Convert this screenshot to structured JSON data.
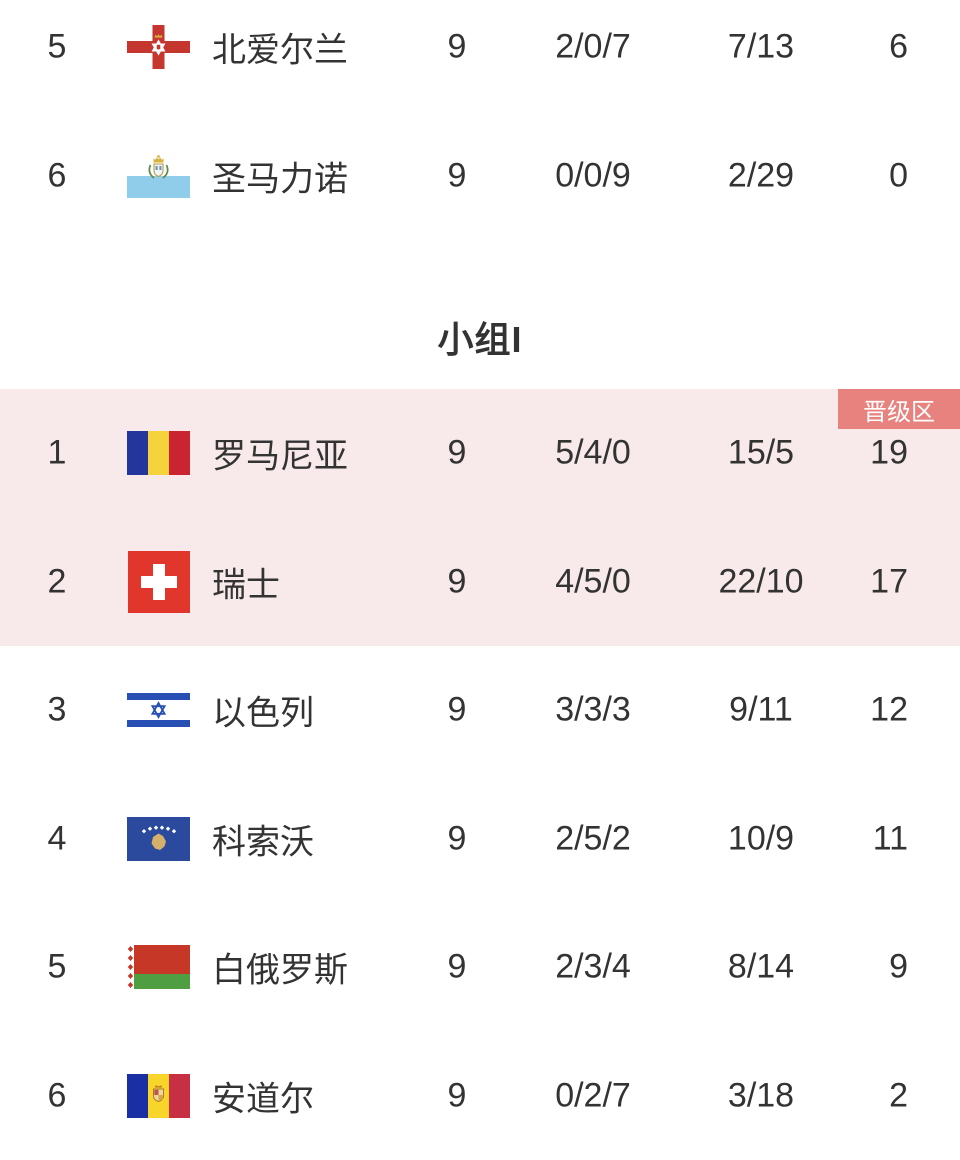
{
  "colors": {
    "text": "#333333",
    "promotion_zone_bg": "#f8eaea",
    "promotion_badge_bg": "#e8827f",
    "promotion_badge_text": "#ffffff"
  },
  "previous_group": {
    "rows": [
      {
        "pos": "5",
        "flag": "northern-ireland",
        "team": "北爱尔兰",
        "played": "9",
        "wdl": "2/0/7",
        "goals": "7/13",
        "points": "6",
        "promoted": false
      },
      {
        "pos": "6",
        "flag": "san-marino",
        "team": "圣马力诺",
        "played": "9",
        "wdl": "0/0/9",
        "goals": "2/29",
        "points": "0",
        "promoted": false
      }
    ]
  },
  "group_i": {
    "title": "小组I",
    "promotion_badge": "晋级区",
    "rows": [
      {
        "pos": "1",
        "flag": "romania",
        "team": "罗马尼亚",
        "played": "9",
        "wdl": "5/4/0",
        "goals": "15/5",
        "points": "19",
        "promoted": true
      },
      {
        "pos": "2",
        "flag": "switzerland",
        "team": "瑞士",
        "played": "9",
        "wdl": "4/5/0",
        "goals": "22/10",
        "points": "17",
        "promoted": true
      },
      {
        "pos": "3",
        "flag": "israel",
        "team": "以色列",
        "played": "9",
        "wdl": "3/3/3",
        "goals": "9/11",
        "points": "12",
        "promoted": false
      },
      {
        "pos": "4",
        "flag": "kosovo",
        "team": "科索沃",
        "played": "9",
        "wdl": "2/5/2",
        "goals": "10/9",
        "points": "11",
        "promoted": false
      },
      {
        "pos": "5",
        "flag": "belarus",
        "team": "白俄罗斯",
        "played": "9",
        "wdl": "2/3/4",
        "goals": "8/14",
        "points": "9",
        "promoted": false
      },
      {
        "pos": "6",
        "flag": "andorra",
        "team": "安道尔",
        "played": "9",
        "wdl": "0/2/7",
        "goals": "3/18",
        "points": "2",
        "promoted": false
      }
    ]
  }
}
